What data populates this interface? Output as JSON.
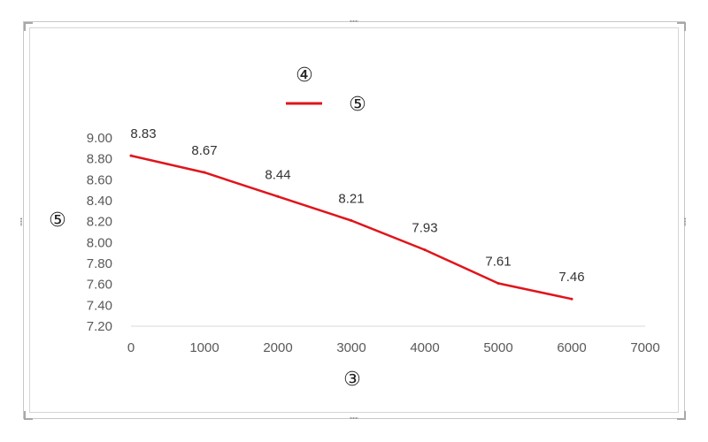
{
  "chart_data": {
    "type": "line",
    "title": "④",
    "xlabel": "③",
    "ylabel": "⑤",
    "legend": {
      "placement": "top",
      "entries": [
        "⑤"
      ]
    },
    "xlim": [
      0,
      7000
    ],
    "ylim": [
      7.2,
      9.0
    ],
    "x_ticks": [
      "0",
      "1000",
      "2000",
      "3000",
      "4000",
      "5000",
      "6000",
      "7000"
    ],
    "y_ticks": [
      "9.00",
      "8.80",
      "8.60",
      "8.40",
      "8.20",
      "8.00",
      "7.80",
      "7.60",
      "7.40",
      "7.20"
    ],
    "grid": false,
    "series": [
      {
        "name": "⑤",
        "color": "#e0151b",
        "x": [
          0,
          1000,
          2000,
          3000,
          4000,
          5000,
          6000
        ],
        "values": [
          8.83,
          8.67,
          8.44,
          8.21,
          7.93,
          7.61,
          7.46
        ],
        "labels": [
          "8.83",
          "8.67",
          "8.44",
          "8.21",
          "7.93",
          "7.61",
          "7.46"
        ]
      }
    ]
  }
}
